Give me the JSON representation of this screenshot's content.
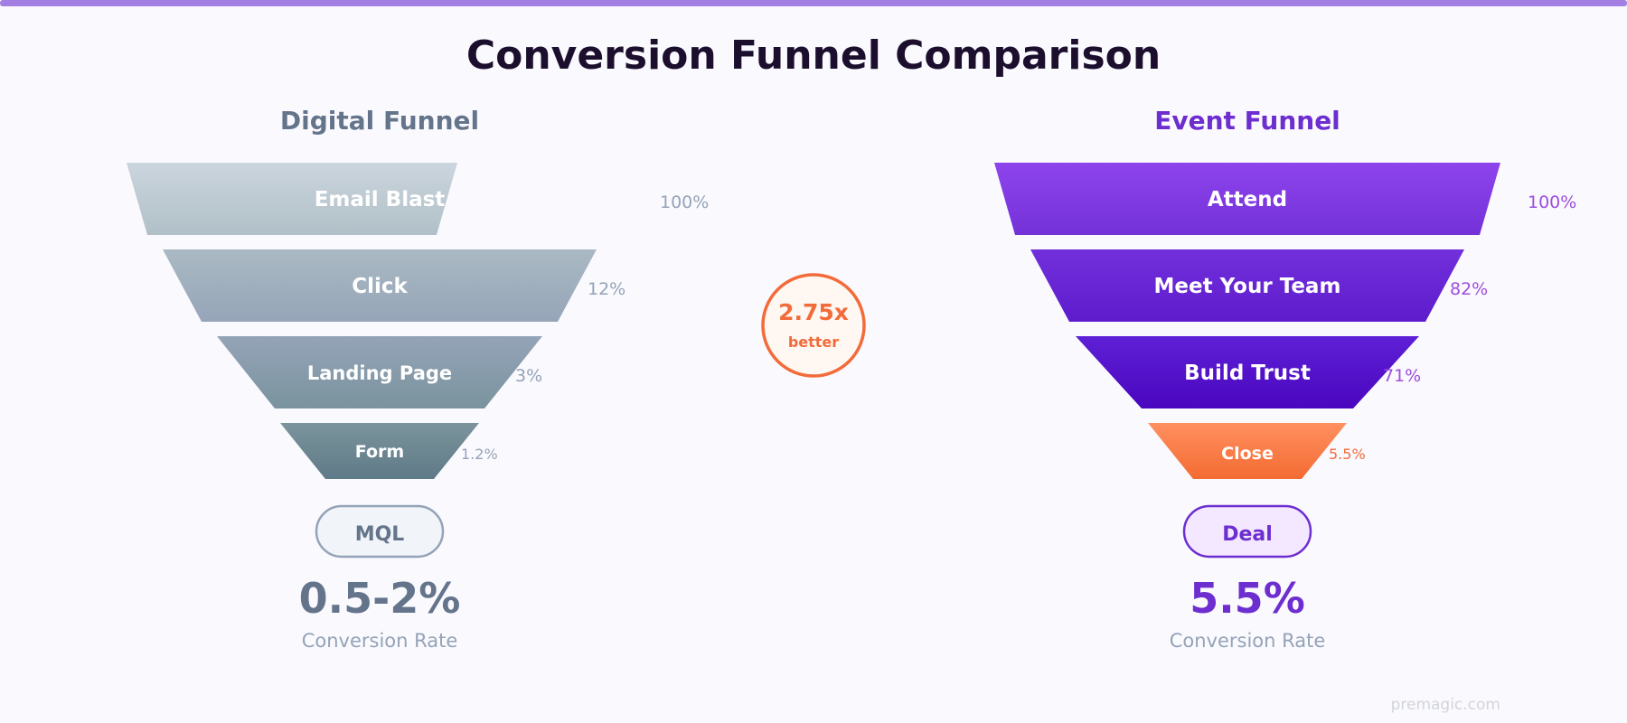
{
  "title": "Conversion Funnel Comparison",
  "colors": {
    "accent_bar": "#a47fe3",
    "title": "#1c0f2e",
    "digital_heading": "#64748b",
    "event_heading": "#6d2ed0",
    "digital_pct": "#94a3b8",
    "event_pct": "#9d4edd",
    "orange": "#f26b3a",
    "caption": "#94a3b8",
    "watermark": "#d1d5db"
  },
  "digital": {
    "heading": "Digital Funnel",
    "stages": [
      {
        "label": "Email Blast",
        "pct": "100%"
      },
      {
        "label": "Click",
        "pct": "12%"
      },
      {
        "label": "Landing Page",
        "pct": "3%"
      },
      {
        "label": "Form",
        "pct": "1.2%"
      }
    ],
    "outcome": "MQL",
    "rate": "0.5-2%",
    "rate_caption": "Conversion Rate"
  },
  "event": {
    "heading": "Event Funnel",
    "stages": [
      {
        "label": "Attend",
        "pct": "100%"
      },
      {
        "label": "Meet Your Team",
        "pct": "82%"
      },
      {
        "label": "Build Trust",
        "pct": "71%"
      },
      {
        "label": "Close",
        "pct": "5.5%"
      }
    ],
    "outcome": "Deal",
    "rate": "5.5%",
    "rate_caption": "Conversion Rate"
  },
  "comparison": {
    "multiplier": "2.75x",
    "caption": "better"
  },
  "watermark": "premagic.com"
}
